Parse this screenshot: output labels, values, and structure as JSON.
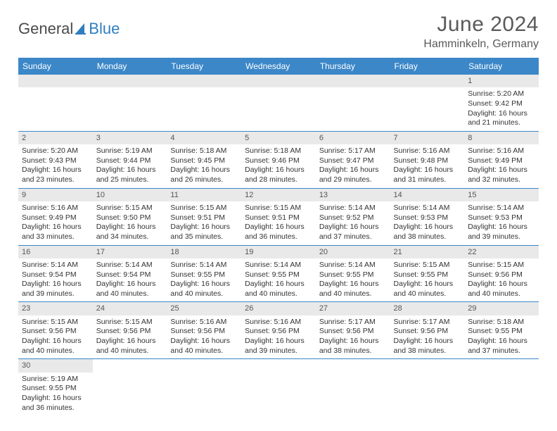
{
  "brand": {
    "part1": "General",
    "part2": "Blue"
  },
  "title": "June 2024",
  "location": "Hamminkeln, Germany",
  "colors": {
    "header_bg": "#3b87c8",
    "header_text": "#ffffff",
    "daynum_bg": "#e9e9e9",
    "row_border": "#3b87c8",
    "title_color": "#5a5a5a",
    "brand_blue": "#2f7ec0"
  },
  "weekdays": [
    "Sunday",
    "Monday",
    "Tuesday",
    "Wednesday",
    "Thursday",
    "Friday",
    "Saturday"
  ],
  "weeks": [
    [
      null,
      null,
      null,
      null,
      null,
      null,
      {
        "n": "1",
        "sr": "5:20 AM",
        "ss": "9:42 PM",
        "dl": "16 hours and 21 minutes."
      }
    ],
    [
      {
        "n": "2",
        "sr": "5:20 AM",
        "ss": "9:43 PM",
        "dl": "16 hours and 23 minutes."
      },
      {
        "n": "3",
        "sr": "5:19 AM",
        "ss": "9:44 PM",
        "dl": "16 hours and 25 minutes."
      },
      {
        "n": "4",
        "sr": "5:18 AM",
        "ss": "9:45 PM",
        "dl": "16 hours and 26 minutes."
      },
      {
        "n": "5",
        "sr": "5:18 AM",
        "ss": "9:46 PM",
        "dl": "16 hours and 28 minutes."
      },
      {
        "n": "6",
        "sr": "5:17 AM",
        "ss": "9:47 PM",
        "dl": "16 hours and 29 minutes."
      },
      {
        "n": "7",
        "sr": "5:16 AM",
        "ss": "9:48 PM",
        "dl": "16 hours and 31 minutes."
      },
      {
        "n": "8",
        "sr": "5:16 AM",
        "ss": "9:49 PM",
        "dl": "16 hours and 32 minutes."
      }
    ],
    [
      {
        "n": "9",
        "sr": "5:16 AM",
        "ss": "9:49 PM",
        "dl": "16 hours and 33 minutes."
      },
      {
        "n": "10",
        "sr": "5:15 AM",
        "ss": "9:50 PM",
        "dl": "16 hours and 34 minutes."
      },
      {
        "n": "11",
        "sr": "5:15 AM",
        "ss": "9:51 PM",
        "dl": "16 hours and 35 minutes."
      },
      {
        "n": "12",
        "sr": "5:15 AM",
        "ss": "9:51 PM",
        "dl": "16 hours and 36 minutes."
      },
      {
        "n": "13",
        "sr": "5:14 AM",
        "ss": "9:52 PM",
        "dl": "16 hours and 37 minutes."
      },
      {
        "n": "14",
        "sr": "5:14 AM",
        "ss": "9:53 PM",
        "dl": "16 hours and 38 minutes."
      },
      {
        "n": "15",
        "sr": "5:14 AM",
        "ss": "9:53 PM",
        "dl": "16 hours and 39 minutes."
      }
    ],
    [
      {
        "n": "16",
        "sr": "5:14 AM",
        "ss": "9:54 PM",
        "dl": "16 hours and 39 minutes."
      },
      {
        "n": "17",
        "sr": "5:14 AM",
        "ss": "9:54 PM",
        "dl": "16 hours and 40 minutes."
      },
      {
        "n": "18",
        "sr": "5:14 AM",
        "ss": "9:55 PM",
        "dl": "16 hours and 40 minutes."
      },
      {
        "n": "19",
        "sr": "5:14 AM",
        "ss": "9:55 PM",
        "dl": "16 hours and 40 minutes."
      },
      {
        "n": "20",
        "sr": "5:14 AM",
        "ss": "9:55 PM",
        "dl": "16 hours and 40 minutes."
      },
      {
        "n": "21",
        "sr": "5:15 AM",
        "ss": "9:55 PM",
        "dl": "16 hours and 40 minutes."
      },
      {
        "n": "22",
        "sr": "5:15 AM",
        "ss": "9:56 PM",
        "dl": "16 hours and 40 minutes."
      }
    ],
    [
      {
        "n": "23",
        "sr": "5:15 AM",
        "ss": "9:56 PM",
        "dl": "16 hours and 40 minutes."
      },
      {
        "n": "24",
        "sr": "5:15 AM",
        "ss": "9:56 PM",
        "dl": "16 hours and 40 minutes."
      },
      {
        "n": "25",
        "sr": "5:16 AM",
        "ss": "9:56 PM",
        "dl": "16 hours and 40 minutes."
      },
      {
        "n": "26",
        "sr": "5:16 AM",
        "ss": "9:56 PM",
        "dl": "16 hours and 39 minutes."
      },
      {
        "n": "27",
        "sr": "5:17 AM",
        "ss": "9:56 PM",
        "dl": "16 hours and 38 minutes."
      },
      {
        "n": "28",
        "sr": "5:17 AM",
        "ss": "9:56 PM",
        "dl": "16 hours and 38 minutes."
      },
      {
        "n": "29",
        "sr": "5:18 AM",
        "ss": "9:55 PM",
        "dl": "16 hours and 37 minutes."
      }
    ],
    [
      {
        "n": "30",
        "sr": "5:19 AM",
        "ss": "9:55 PM",
        "dl": "16 hours and 36 minutes."
      },
      null,
      null,
      null,
      null,
      null,
      null
    ]
  ],
  "labels": {
    "sunrise": "Sunrise: ",
    "sunset": "Sunset: ",
    "daylight": "Daylight: "
  }
}
